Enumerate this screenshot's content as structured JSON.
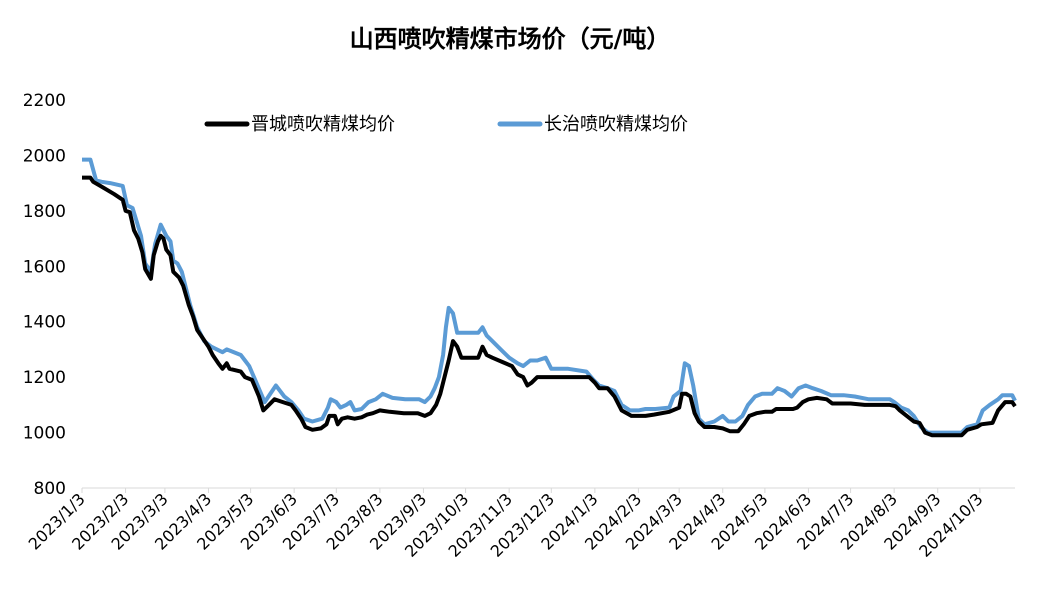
{
  "chart_data": {
    "type": "line",
    "title": "山西喷吹精煤市场价（元/吨）",
    "xlabel": "",
    "ylabel": "",
    "ylim": [
      800,
      2200
    ],
    "yticks": [
      "800",
      "1000",
      "1200",
      "1400",
      "1600",
      "1800",
      "2000",
      "2200"
    ],
    "x_ticks": [
      "2023/1/3",
      "2023/2/3",
      "2023/3/3",
      "2023/4/3",
      "2023/5/3",
      "2023/6/3",
      "2023/7/3",
      "2023/8/3",
      "2023/9/3",
      "2023/10/3",
      "2023/11/3",
      "2023/12/3",
      "2024/1/3",
      "2024/2/3",
      "2024/3/3",
      "2024/4/3",
      "2024/5/3",
      "2024/6/3",
      "2024/7/3",
      "2024/8/3",
      "2024/9/3",
      "2024/10/3"
    ],
    "x_range": [
      "2023-01-03",
      "2024-10-28"
    ],
    "grid": false,
    "legend_position": "top",
    "series": [
      {
        "name": "晋城喷吹精煤均价",
        "color": "#000000",
        "points": [
          [
            "2023-01-03",
            1920
          ],
          [
            "2023-01-09",
            1920
          ],
          [
            "2023-01-11",
            1905
          ],
          [
            "2023-01-16",
            1890
          ],
          [
            "2023-01-26",
            1860
          ],
          [
            "2023-02-01",
            1840
          ],
          [
            "2023-02-03",
            1800
          ],
          [
            "2023-02-06",
            1795
          ],
          [
            "2023-02-09",
            1730
          ],
          [
            "2023-02-12",
            1700
          ],
          [
            "2023-02-15",
            1650
          ],
          [
            "2023-02-17",
            1590
          ],
          [
            "2023-02-21",
            1555
          ],
          [
            "2023-02-23",
            1640
          ],
          [
            "2023-02-26",
            1690
          ],
          [
            "2023-02-28",
            1710
          ],
          [
            "2023-03-02",
            1700
          ],
          [
            "2023-03-04",
            1660
          ],
          [
            "2023-03-07",
            1640
          ],
          [
            "2023-03-09",
            1580
          ],
          [
            "2023-03-13",
            1560
          ],
          [
            "2023-03-16",
            1530
          ],
          [
            "2023-03-20",
            1460
          ],
          [
            "2023-03-23",
            1420
          ],
          [
            "2023-03-26",
            1370
          ],
          [
            "2023-03-30",
            1340
          ],
          [
            "2023-04-03",
            1310
          ],
          [
            "2023-04-06",
            1280
          ],
          [
            "2023-04-10",
            1250
          ],
          [
            "2023-04-13",
            1230
          ],
          [
            "2023-04-16",
            1250
          ],
          [
            "2023-04-18",
            1230
          ],
          [
            "2023-04-26",
            1220
          ],
          [
            "2023-04-29",
            1200
          ],
          [
            "2023-05-04",
            1190
          ],
          [
            "2023-05-09",
            1130
          ],
          [
            "2023-05-12",
            1080
          ],
          [
            "2023-05-16",
            1100
          ],
          [
            "2023-05-20",
            1120
          ],
          [
            "2023-05-26",
            1110
          ],
          [
            "2023-06-01",
            1100
          ],
          [
            "2023-06-04",
            1080
          ],
          [
            "2023-06-08",
            1050
          ],
          [
            "2023-06-11",
            1020
          ],
          [
            "2023-06-16",
            1010
          ],
          [
            "2023-06-22",
            1015
          ],
          [
            "2023-06-26",
            1030
          ],
          [
            "2023-06-28",
            1060
          ],
          [
            "2023-07-02",
            1060
          ],
          [
            "2023-07-04",
            1030
          ],
          [
            "2023-07-07",
            1050
          ],
          [
            "2023-07-11",
            1055
          ],
          [
            "2023-07-16",
            1050
          ],
          [
            "2023-07-21",
            1055
          ],
          [
            "2023-07-25",
            1065
          ],
          [
            "2023-07-29",
            1070
          ],
          [
            "2023-08-03",
            1080
          ],
          [
            "2023-08-10",
            1075
          ],
          [
            "2023-08-20",
            1070
          ],
          [
            "2023-08-30",
            1070
          ],
          [
            "2023-09-04",
            1060
          ],
          [
            "2023-09-08",
            1070
          ],
          [
            "2023-09-12",
            1100
          ],
          [
            "2023-09-15",
            1140
          ],
          [
            "2023-09-18",
            1200
          ],
          [
            "2023-09-21",
            1260
          ],
          [
            "2023-09-24",
            1330
          ],
          [
            "2023-09-27",
            1310
          ],
          [
            "2023-09-30",
            1270
          ],
          [
            "2023-10-05",
            1270
          ],
          [
            "2023-10-12",
            1270
          ],
          [
            "2023-10-15",
            1310
          ],
          [
            "2023-10-18",
            1280
          ],
          [
            "2023-10-22",
            1270
          ],
          [
            "2023-10-29",
            1255
          ],
          [
            "2023-11-05",
            1240
          ],
          [
            "2023-11-09",
            1210
          ],
          [
            "2023-11-13",
            1200
          ],
          [
            "2023-11-16",
            1170
          ],
          [
            "2023-11-19",
            1180
          ],
          [
            "2023-11-23",
            1200
          ],
          [
            "2023-12-01",
            1200
          ],
          [
            "2023-12-15",
            1200
          ],
          [
            "2023-12-30",
            1200
          ],
          [
            "2024-01-03",
            1180
          ],
          [
            "2024-01-06",
            1160
          ],
          [
            "2024-01-12",
            1160
          ],
          [
            "2024-01-17",
            1130
          ],
          [
            "2024-01-22",
            1080
          ],
          [
            "2024-01-29",
            1060
          ],
          [
            "2024-02-03",
            1060
          ],
          [
            "2024-02-08",
            1060
          ],
          [
            "2024-02-14",
            1065
          ],
          [
            "2024-02-25",
            1075
          ],
          [
            "2024-03-03",
            1090
          ],
          [
            "2024-03-05",
            1140
          ],
          [
            "2024-03-08",
            1140
          ],
          [
            "2024-03-11",
            1130
          ],
          [
            "2024-03-14",
            1070
          ],
          [
            "2024-03-17",
            1040
          ],
          [
            "2024-03-21",
            1020
          ],
          [
            "2024-03-28",
            1020
          ],
          [
            "2024-04-03",
            1015
          ],
          [
            "2024-04-08",
            1005
          ],
          [
            "2024-04-14",
            1005
          ],
          [
            "2024-04-18",
            1030
          ],
          [
            "2024-04-22",
            1060
          ],
          [
            "2024-04-27",
            1070
          ],
          [
            "2024-05-03",
            1075
          ],
          [
            "2024-05-08",
            1075
          ],
          [
            "2024-05-11",
            1085
          ],
          [
            "2024-05-17",
            1085
          ],
          [
            "2024-05-23",
            1085
          ],
          [
            "2024-05-26",
            1090
          ],
          [
            "2024-05-30",
            1110
          ],
          [
            "2024-06-03",
            1120
          ],
          [
            "2024-06-09",
            1125
          ],
          [
            "2024-06-16",
            1120
          ],
          [
            "2024-06-20",
            1105
          ],
          [
            "2024-06-27",
            1105
          ],
          [
            "2024-07-03",
            1105
          ],
          [
            "2024-07-13",
            1100
          ],
          [
            "2024-07-23",
            1100
          ],
          [
            "2024-07-31",
            1100
          ],
          [
            "2024-08-04",
            1095
          ],
          [
            "2024-08-07",
            1080
          ],
          [
            "2024-08-12",
            1060
          ],
          [
            "2024-08-17",
            1040
          ],
          [
            "2024-08-21",
            1035
          ],
          [
            "2024-08-25",
            1000
          ],
          [
            "2024-08-30",
            990
          ],
          [
            "2024-09-10",
            990
          ],
          [
            "2024-09-20",
            990
          ],
          [
            "2024-09-24",
            1010
          ],
          [
            "2024-10-01",
            1020
          ],
          [
            "2024-10-04",
            1030
          ],
          [
            "2024-10-12",
            1035
          ],
          [
            "2024-10-16",
            1080
          ],
          [
            "2024-10-21",
            1110
          ],
          [
            "2024-10-26",
            1110
          ],
          [
            "2024-10-28",
            1095
          ]
        ]
      },
      {
        "name": "长治喷吹精煤均价",
        "color": "#5B9BD5",
        "points": [
          [
            "2023-01-03",
            1985
          ],
          [
            "2023-01-09",
            1985
          ],
          [
            "2023-01-13",
            1910
          ],
          [
            "2023-01-17",
            1905
          ],
          [
            "2023-01-23",
            1900
          ],
          [
            "2023-02-01",
            1890
          ],
          [
            "2023-02-04",
            1820
          ],
          [
            "2023-02-08",
            1810
          ],
          [
            "2023-02-11",
            1760
          ],
          [
            "2023-02-14",
            1710
          ],
          [
            "2023-02-17",
            1610
          ],
          [
            "2023-02-21",
            1580
          ],
          [
            "2023-02-24",
            1680
          ],
          [
            "2023-02-26",
            1715
          ],
          [
            "2023-02-28",
            1750
          ],
          [
            "2023-03-04",
            1710
          ],
          [
            "2023-03-07",
            1690
          ],
          [
            "2023-03-09",
            1620
          ],
          [
            "2023-03-12",
            1610
          ],
          [
            "2023-03-15",
            1580
          ],
          [
            "2023-03-18",
            1520
          ],
          [
            "2023-03-21",
            1460
          ],
          [
            "2023-03-26",
            1380
          ],
          [
            "2023-03-31",
            1330
          ],
          [
            "2023-04-05",
            1310
          ],
          [
            "2023-04-09",
            1300
          ],
          [
            "2023-04-13",
            1290
          ],
          [
            "2023-04-16",
            1300
          ],
          [
            "2023-04-26",
            1280
          ],
          [
            "2023-04-29",
            1260
          ],
          [
            "2023-05-02",
            1240
          ],
          [
            "2023-05-08",
            1170
          ],
          [
            "2023-05-13",
            1110
          ],
          [
            "2023-05-17",
            1140
          ],
          [
            "2023-05-21",
            1170
          ],
          [
            "2023-05-27",
            1130
          ],
          [
            "2023-06-01",
            1110
          ],
          [
            "2023-06-06",
            1080
          ],
          [
            "2023-06-10",
            1050
          ],
          [
            "2023-06-16",
            1040
          ],
          [
            "2023-06-23",
            1050
          ],
          [
            "2023-06-27",
            1090
          ],
          [
            "2023-06-29",
            1120
          ],
          [
            "2023-07-03",
            1110
          ],
          [
            "2023-07-06",
            1090
          ],
          [
            "2023-07-10",
            1100
          ],
          [
            "2023-07-13",
            1110
          ],
          [
            "2023-07-16",
            1080
          ],
          [
            "2023-07-21",
            1085
          ],
          [
            "2023-07-26",
            1110
          ],
          [
            "2023-07-31",
            1120
          ],
          [
            "2023-08-05",
            1140
          ],
          [
            "2023-08-12",
            1125
          ],
          [
            "2023-08-21",
            1120
          ],
          [
            "2023-08-31",
            1120
          ],
          [
            "2023-09-04",
            1110
          ],
          [
            "2023-09-08",
            1130
          ],
          [
            "2023-09-11",
            1160
          ],
          [
            "2023-09-14",
            1200
          ],
          [
            "2023-09-17",
            1280
          ],
          [
            "2023-09-19",
            1380
          ],
          [
            "2023-09-21",
            1450
          ],
          [
            "2023-09-24",
            1430
          ],
          [
            "2023-09-27",
            1360
          ],
          [
            "2023-10-03",
            1360
          ],
          [
            "2023-10-12",
            1360
          ],
          [
            "2023-10-15",
            1380
          ],
          [
            "2023-10-18",
            1350
          ],
          [
            "2023-10-22",
            1330
          ],
          [
            "2023-10-28",
            1300
          ],
          [
            "2023-11-03",
            1270
          ],
          [
            "2023-11-09",
            1250
          ],
          [
            "2023-11-13",
            1240
          ],
          [
            "2023-11-18",
            1260
          ],
          [
            "2023-11-23",
            1260
          ],
          [
            "2023-11-29",
            1270
          ],
          [
            "2023-12-03",
            1230
          ],
          [
            "2023-12-15",
            1230
          ],
          [
            "2023-12-28",
            1220
          ],
          [
            "2024-01-02",
            1190
          ],
          [
            "2024-01-06",
            1170
          ],
          [
            "2024-01-12",
            1160
          ],
          [
            "2024-01-17",
            1150
          ],
          [
            "2024-01-22",
            1100
          ],
          [
            "2024-01-28",
            1080
          ],
          [
            "2024-02-03",
            1080
          ],
          [
            "2024-02-08",
            1085
          ],
          [
            "2024-02-15",
            1085
          ],
          [
            "2024-02-25",
            1090
          ],
          [
            "2024-02-28",
            1130
          ],
          [
            "2024-03-04",
            1150
          ],
          [
            "2024-03-07",
            1250
          ],
          [
            "2024-03-10",
            1240
          ],
          [
            "2024-03-13",
            1170
          ],
          [
            "2024-03-17",
            1050
          ],
          [
            "2024-03-21",
            1030
          ],
          [
            "2024-03-28",
            1040
          ],
          [
            "2024-04-03",
            1060
          ],
          [
            "2024-04-07",
            1040
          ],
          [
            "2024-04-12",
            1040
          ],
          [
            "2024-04-17",
            1060
          ],
          [
            "2024-04-21",
            1100
          ],
          [
            "2024-04-26",
            1130
          ],
          [
            "2024-05-01",
            1140
          ],
          [
            "2024-05-08",
            1140
          ],
          [
            "2024-05-12",
            1160
          ],
          [
            "2024-05-17",
            1150
          ],
          [
            "2024-05-22",
            1130
          ],
          [
            "2024-05-27",
            1160
          ],
          [
            "2024-06-01",
            1170
          ],
          [
            "2024-06-06",
            1160
          ],
          [
            "2024-06-12",
            1150
          ],
          [
            "2024-06-19",
            1135
          ],
          [
            "2024-06-28",
            1135
          ],
          [
            "2024-07-06",
            1130
          ],
          [
            "2024-07-16",
            1120
          ],
          [
            "2024-07-26",
            1120
          ],
          [
            "2024-07-31",
            1120
          ],
          [
            "2024-08-03",
            1110
          ],
          [
            "2024-08-08",
            1090
          ],
          [
            "2024-08-13",
            1080
          ],
          [
            "2024-08-17",
            1060
          ],
          [
            "2024-08-22",
            1020
          ],
          [
            "2024-08-27",
            1000
          ],
          [
            "2024-09-10",
            1000
          ],
          [
            "2024-09-20",
            1000
          ],
          [
            "2024-09-24",
            1020
          ],
          [
            "2024-10-01",
            1030
          ],
          [
            "2024-10-05",
            1080
          ],
          [
            "2024-10-10",
            1100
          ],
          [
            "2024-10-16",
            1120
          ],
          [
            "2024-10-19",
            1135
          ],
          [
            "2024-10-26",
            1135
          ],
          [
            "2024-10-28",
            1115
          ]
        ]
      }
    ]
  }
}
